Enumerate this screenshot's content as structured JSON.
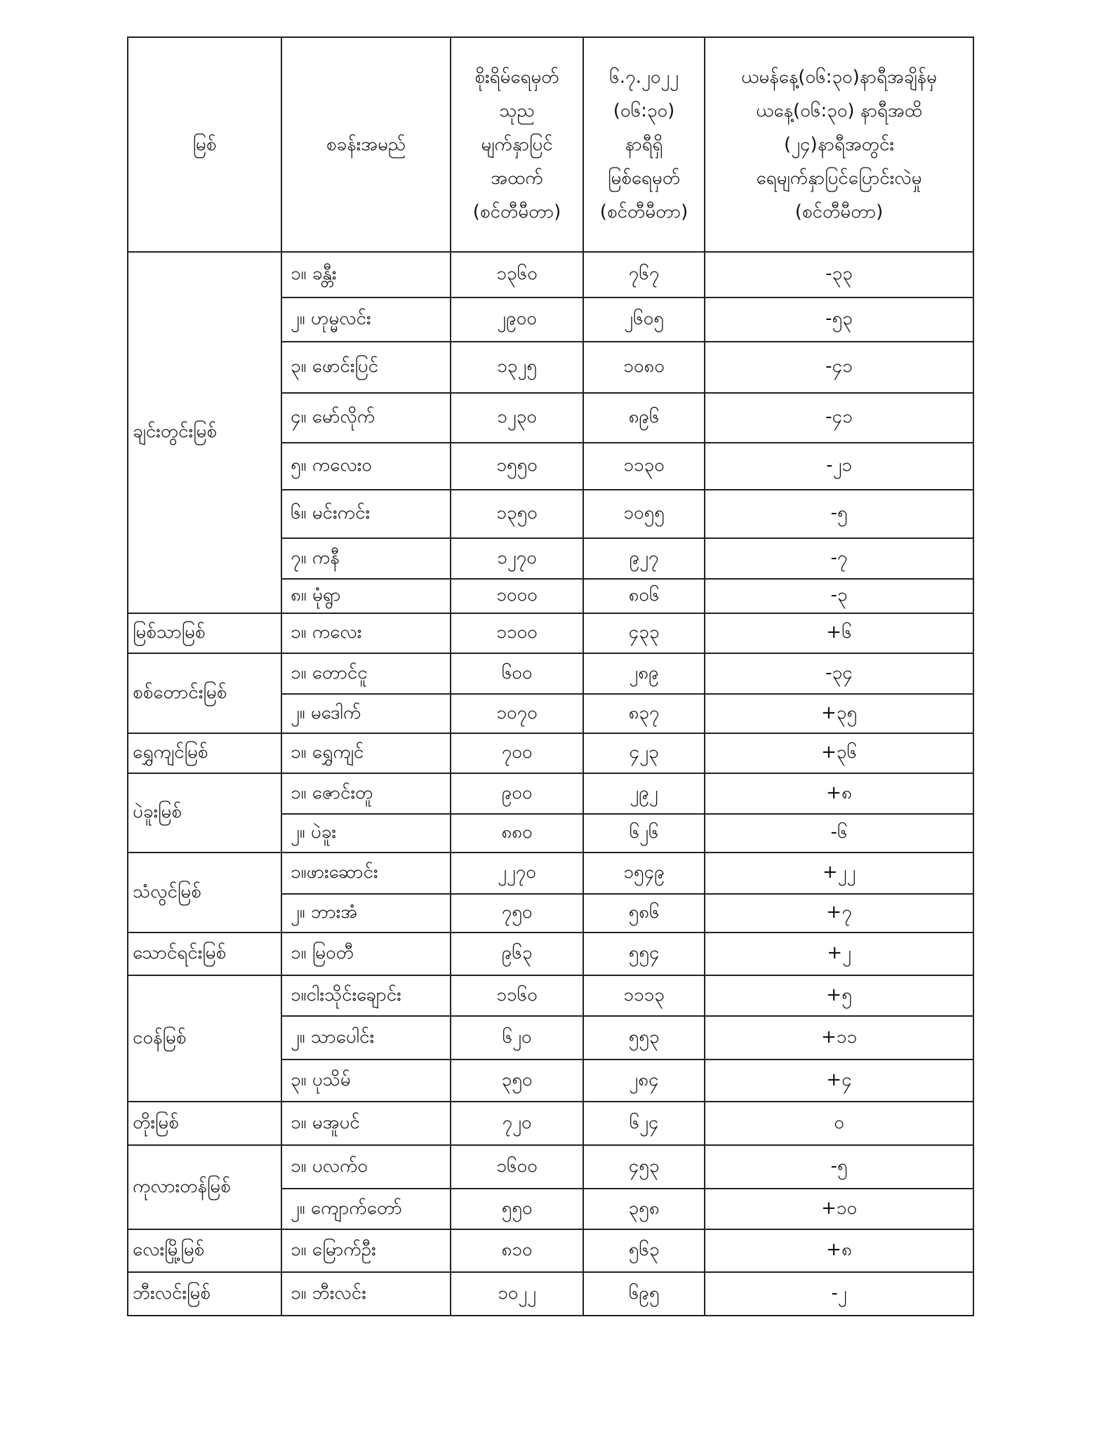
{
  "header": {
    "river": "မြစ်",
    "station": "စခန်းအမည်",
    "danger_level": [
      "စိုးရိမ်ရေမှတ်",
      "သုည",
      "မျက်နှာပြင်",
      "အထက်",
      "(စင်တီမီတာ)"
    ],
    "current_level": [
      "၆.၇.၂၀၂၂",
      "(၀၆:၃၀)",
      "နာရီရှိ",
      "မြစ်ရေမှတ်",
      "(စင်တီမီတာ)"
    ],
    "change_24h": [
      "ယမန်နေ့(၀၆:၃၀)နာရီအချိန်မှ",
      "ယနေ့(၀၆:၃၀) နာရီအထိ",
      "(၂၄)နာရီအတွင်း",
      "ရေမျက်နှာပြင်ပြောင်းလဲမှု",
      "(စင်တီမီတာ)"
    ]
  },
  "rivers": [
    {
      "name": "ချင်းတွင်းမြစ်",
      "stations": [
        {
          "name": "၁။ ခန္တီး",
          "danger": "၁၃၆၀",
          "level": "၇၆၇",
          "change": "-၃၃"
        },
        {
          "name": "၂။ ဟုမ္မလင်း",
          "danger": "၂၉၀၀",
          "level": "၂၆၀၅",
          "change": "-၅၃"
        },
        {
          "name": "၃။ ဖောင်းပြင်",
          "danger": "၁၃၂၅",
          "level": "၁၀၈၀",
          "change": "-၄၁"
        },
        {
          "name": "၄။ မော်လိုက်",
          "danger": "၁၂၃၀",
          "level": "၈၉၆",
          "change": "-၄၁"
        },
        {
          "name": "၅။ ကလေးဝ",
          "danger": "၁၅၅၀",
          "level": "၁၁၃၀",
          "change": "-၂၁"
        },
        {
          "name": "၆။ မင်းကင်း",
          "danger": "၁၃၅၀",
          "level": "၁၀၅၅",
          "change": "-၅"
        },
        {
          "name": "၇။ ကနီ",
          "danger": "၁၂၇၀",
          "level": "၉၂၇",
          "change": "-၇"
        },
        {
          "name": "၈။ မုံရွာ",
          "danger": "၁၀၀၀",
          "level": "၈၀၆",
          "change": "-၃"
        }
      ]
    },
    {
      "name": "မြစ်သာမြစ်",
      "stations": [
        {
          "name": "၁။ ကလေး",
          "danger": "၁၁၀၀",
          "level": "၄၃၃",
          "change": "+၆"
        }
      ]
    },
    {
      "name": "စစ်တောင်းမြစ်",
      "stations": [
        {
          "name": "၁။ တောင်ငူ",
          "danger": "၆၀၀",
          "level": "၂၈၉",
          "change": "-၃၄"
        },
        {
          "name": "၂။ မဒေါက်",
          "danger": "၁၀၇၀",
          "level": "၈၃၇",
          "change": "+၃၅"
        }
      ]
    },
    {
      "name": "ရွှေကျင်မြစ်",
      "stations": [
        {
          "name": "၁။ ရွှေကျင်",
          "danger": "၇၀၀",
          "level": "၄၂၃",
          "change": "+၃၆"
        }
      ]
    },
    {
      "name": "ပဲခူးမြစ်",
      "stations": [
        {
          "name": "၁။ ဇောင်းတူ",
          "danger": "၉၀၀",
          "level": "၂၉၂",
          "change": "+၈"
        },
        {
          "name": "၂။ ပဲခူး",
          "danger": "၈၈၀",
          "level": "၆၂၆",
          "change": "-၆"
        }
      ]
    },
    {
      "name": "သံလွင်မြစ်",
      "stations": [
        {
          "name": "၁။ဖားဆောင်း",
          "danger": "၂၂၇၀",
          "level": "၁၅၄၉",
          "change": "+၂၂"
        },
        {
          "name": "၂။ ဘားအံ",
          "danger": "၇၅၀",
          "level": "၅၈၆",
          "change": "+၇"
        }
      ]
    },
    {
      "name": "သောင်ရင်းမြစ်",
      "stations": [
        {
          "name": "၁။ မြဝတီ",
          "danger": "၉၆၃",
          "level": "၅၅၄",
          "change": "+၂"
        }
      ]
    },
    {
      "name": "ငဝန်မြစ်",
      "stations": [
        {
          "name": "၁။ငါးသိုင်းချောင်း",
          "danger": "၁၁၆၀",
          "level": "၁၁၁၃",
          "change": "+၅"
        },
        {
          "name": "၂။ သာပေါင်း",
          "danger": "၆၂၀",
          "level": "၅၅၃",
          "change": "+၁၁"
        },
        {
          "name": "၃။ ပုသိမ်",
          "danger": "၃၅၀",
          "level": "၂၈၄",
          "change": "+၄"
        }
      ]
    },
    {
      "name": "တိုးမြစ်",
      "stations": [
        {
          "name": "၁။ မအူပင်",
          "danger": "၇၂၀",
          "level": "၆၂၄",
          "change": "၀"
        }
      ]
    },
    {
      "name": "ကုလားတန်မြစ်",
      "stations": [
        {
          "name": "၁။ ပလက်ဝ",
          "danger": "၁၆၀၀",
          "level": "၄၅၃",
          "change": "-၅"
        },
        {
          "name": "၂။ ကျောက်တော်",
          "danger": "၅၅၀",
          "level": "၃၅၈",
          "change": "+၁၀"
        }
      ]
    },
    {
      "name": "လေးမြို့မြစ်",
      "stations": [
        {
          "name": "၁။ မြောက်ဦး",
          "danger": "၈၁၀",
          "level": "၅၆၃",
          "change": "+၈"
        }
      ]
    },
    {
      "name": "ဘီးလင်းမြစ်",
      "stations": [
        {
          "name": "၁။ ဘီးလင်း",
          "danger": "၁၀၂၂",
          "level": "၆၉၅",
          "change": "-၂"
        }
      ]
    }
  ]
}
